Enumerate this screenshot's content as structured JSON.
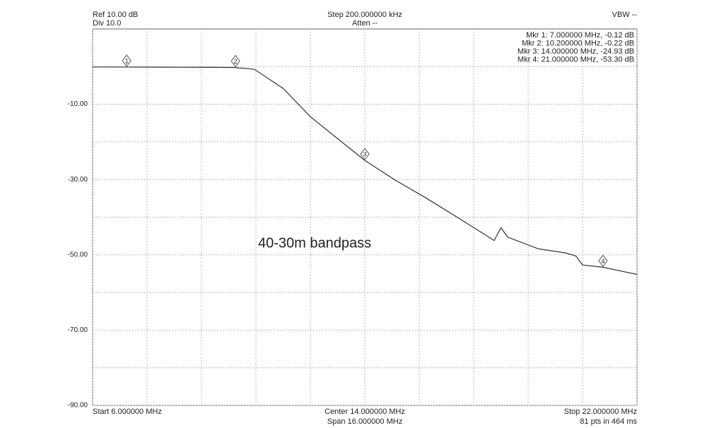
{
  "chart_data": {
    "type": "line",
    "header": {
      "ref": "Ref 10.00 dB",
      "div": "Div 10.0",
      "step": "Step 200.000000 kHz",
      "atten": "Atten --",
      "vbw": "VBW --"
    },
    "footer": {
      "start": "Start 6.000000 MHz",
      "center": "Center 14.000000 MHz",
      "span": "Span 16.000000 MHz",
      "stop": "Stop 22.000000 MHz",
      "points": "81 pts in 464 ms"
    },
    "annotation": "40-30m bandpass",
    "x": [
      6,
      7,
      8,
      9,
      10.15,
      10.75,
      11.6,
      12.4,
      13.25,
      14,
      14.9,
      15.8,
      16.8,
      17.8,
      18.0,
      18.2,
      19.1,
      19.9,
      20.2,
      20.4,
      21,
      22
    ],
    "series": [
      {
        "color": "#333333",
        "values": [
          -0.1,
          -0.12,
          -0.15,
          -0.18,
          -0.22,
          -0.7,
          -5.8,
          -13.3,
          -19.5,
          -24.93,
          -30.2,
          -34.9,
          -40.5,
          -46.2,
          -42.8,
          -45.3,
          -48.4,
          -49.5,
          -50.3,
          -52.7,
          -53.3,
          -55.2
        ]
      }
    ],
    "markers": [
      {
        "label": "1",
        "x": 7,
        "value": -0.12,
        "text": "Mkr 1: 7.000000 MHz, -0.12 dB"
      },
      {
        "label": "2",
        "x": 10.2,
        "value": -0.22,
        "text": "Mkr 2: 10.200000 MHz, -0.22 dB"
      },
      {
        "label": "3",
        "x": 14,
        "value": -24.93,
        "text": "Mkr 3: 14.000000 MHz, -24.93 dB"
      },
      {
        "label": "4",
        "x": 21,
        "value": -53.3,
        "text": "Mkr 4: 21.000000 MHz, -53.30 dB"
      }
    ],
    "xlim": [
      6,
      22
    ],
    "xticks": [
      6,
      7.6,
      9.2,
      10.8,
      12.4,
      14,
      15.6,
      17.2,
      18.8,
      20.4,
      22
    ],
    "ylim": [
      -90,
      10
    ],
    "yticks": [
      {
        "value": -10,
        "label": "-10.00"
      },
      {
        "value": -30,
        "label": "-30.00"
      },
      {
        "value": -50,
        "label": "-50.00"
      },
      {
        "value": -70,
        "label": "-70.00"
      },
      {
        "value": -90,
        "label": "-90.00"
      }
    ],
    "yminor": [
      0,
      -20,
      -40,
      -60,
      -80
    ],
    "grid": true
  }
}
